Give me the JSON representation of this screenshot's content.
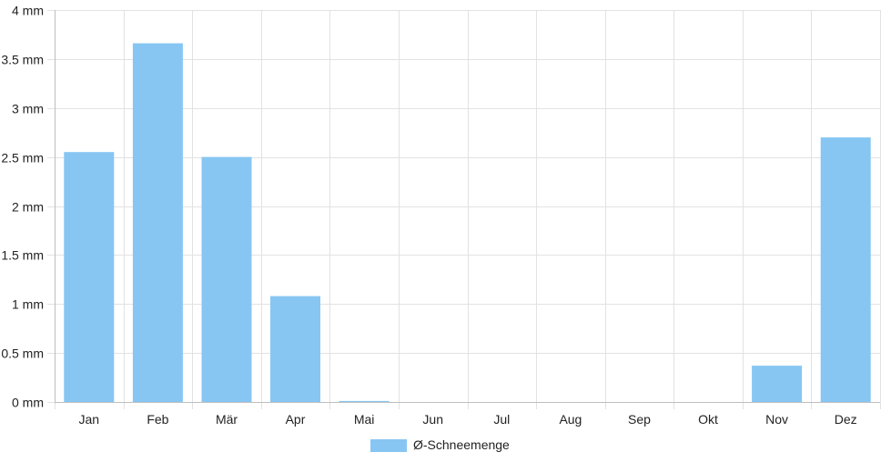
{
  "chart_data": {
    "type": "bar",
    "categories": [
      "Jan",
      "Feb",
      "Mär",
      "Apr",
      "Mai",
      "Jun",
      "Jul",
      "Aug",
      "Sep",
      "Okt",
      "Nov",
      "Dez"
    ],
    "series": [
      {
        "name": "Ø-Schneemenge",
        "values": [
          2.55,
          3.66,
          2.5,
          1.08,
          0.01,
          0,
          0,
          0,
          0,
          0,
          0.37,
          2.7
        ],
        "color": "#87c6f2"
      }
    ],
    "y_ticks": [
      "0 mm",
      "0.5 mm",
      "1 mm",
      "1.5 mm",
      "2 mm",
      "2.5 mm",
      "3 mm",
      "3.5 mm",
      "4 mm"
    ],
    "ylim": [
      0,
      4
    ],
    "unit": "mm",
    "grid": true,
    "legend_position": "bottom",
    "colors": {
      "grid": "#e2e2e2",
      "axis": "#bfbfbf",
      "text": "#222222"
    }
  }
}
